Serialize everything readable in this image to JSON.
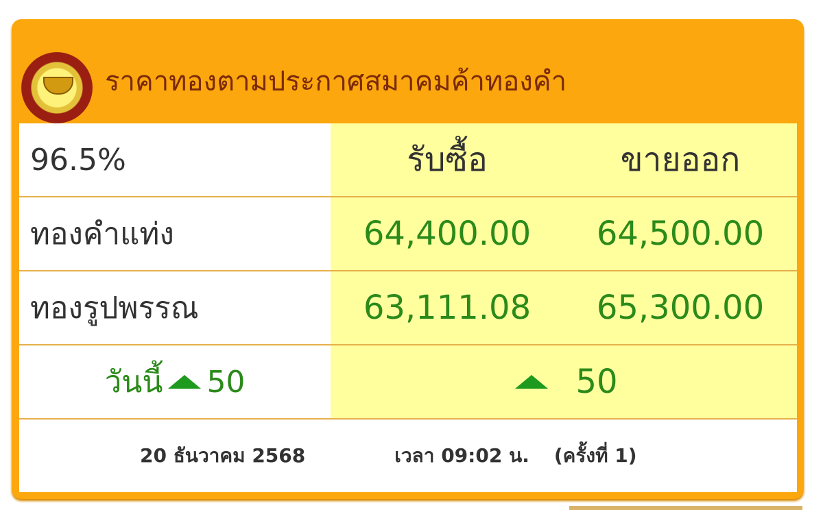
{
  "header": {
    "title": "ราคาทองตามประกาศสมาคมค้าทองคำ",
    "logo": "gold-traders-association-logo"
  },
  "table": {
    "purity": "96.5%",
    "buy_label": "รับซื้อ",
    "sell_label": "ขายออก",
    "rows": [
      {
        "label": "ทองคำแท่ง",
        "buy": "64,400.00",
        "sell": "64,500.00"
      },
      {
        "label": "ทองรูปพรรณ",
        "buy": "63,111.08",
        "sell": "65,300.00"
      }
    ],
    "today_label": "วันนี้",
    "today_change": "50",
    "change": "50",
    "trend": "up",
    "trend_color": "#1e9a1e"
  },
  "footer": {
    "date": "20 ธันวาคม 2568",
    "time": "เวลา 09:02 น.",
    "round": "(ครั้งที่ 1)"
  },
  "colors": {
    "frame": "#fba70d",
    "price": "#2b8a1a",
    "highlight": "#ffff9e"
  }
}
